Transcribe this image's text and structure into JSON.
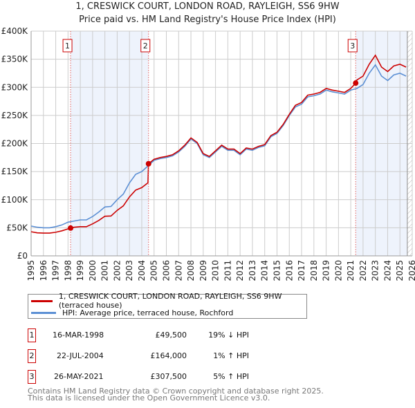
{
  "title": "1, CRESWICK COURT, LONDON ROAD, RAYLEIGH, SS6 9HW",
  "subtitle": "Price paid vs. HM Land Registry's House Price Index (HPI)",
  "chart_data": {
    "type": "line",
    "title": "1, CRESWICK COURT, LONDON ROAD, RAYLEIGH, SS6 9HW",
    "subtitle": "Price paid vs. HM Land Registry's House Price Index (HPI)",
    "xlim": [
      1995,
      2026
    ],
    "ylim": [
      0,
      400000
    ],
    "grid": true,
    "y_ticks": [
      0,
      50000,
      100000,
      150000,
      200000,
      250000,
      300000,
      350000,
      400000
    ],
    "y_tick_labels": [
      "£0",
      "£50K",
      "£100K",
      "£150K",
      "£200K",
      "£250K",
      "£300K",
      "£350K",
      "£400K"
    ],
    "x_ticks": [
      "1995",
      "1996",
      "1997",
      "1998",
      "1999",
      "2000",
      "2001",
      "2002",
      "2003",
      "2004",
      "2005",
      "2006",
      "2007",
      "2008",
      "2009",
      "2010",
      "2011",
      "2012",
      "2013",
      "2014",
      "2015",
      "2016",
      "2017",
      "2018",
      "2019",
      "2020",
      "2021",
      "2022",
      "2023",
      "2024",
      "2025",
      "2026"
    ],
    "legend_position": "below",
    "shaded_ranges": [
      [
        1998.21,
        2004.55
      ],
      [
        2021.4,
        2025.6
      ]
    ],
    "hatched_from": 2025.6,
    "colors": {
      "property": "#cc0000",
      "hpi": "#5b8fd4",
      "shade": "#eef3fc",
      "marker_line": "#e06060"
    },
    "series": [
      {
        "name": "1, CRESWICK COURT, LONDON ROAD, RAYLEIGH, SS6 9HW (terraced house)",
        "color": "#cc0000",
        "x": [
          1995,
          1995.5,
          1996,
          1996.5,
          1997,
          1997.5,
          1998,
          1998.21,
          1998.5,
          1999,
          1999.5,
          2000,
          2000.5,
          2001,
          2001.5,
          2002,
          2002.5,
          2003,
          2003.5,
          2004,
          2004.5,
          2004.55,
          2005,
          2005.5,
          2006,
          2006.5,
          2007,
          2007.5,
          2008,
          2008.5,
          2009,
          2009.5,
          2010,
          2010.5,
          2011,
          2011.5,
          2012,
          2012.5,
          2013,
          2013.5,
          2014,
          2014.5,
          2015,
          2015.5,
          2016,
          2016.5,
          2017,
          2017.5,
          2018,
          2018.5,
          2019,
          2019.5,
          2020,
          2020.5,
          2021,
          2021.4,
          2021.5,
          2022,
          2022.5,
          2023,
          2023.5,
          2024,
          2024.5,
          2025,
          2025.5
        ],
        "y": [
          43000,
          41000,
          40500,
          40500,
          42000,
          44500,
          48000,
          49500,
          51000,
          52000,
          52000,
          57000,
          63000,
          70500,
          71000,
          81000,
          89000,
          105000,
          117000,
          121500,
          130000,
          164000,
          172000,
          175000,
          177000,
          180000,
          187000,
          197000,
          210000,
          202000,
          182000,
          177000,
          187000,
          197000,
          190000,
          190000,
          182000,
          192000,
          190000,
          195000,
          198000,
          214000,
          220000,
          234000,
          252000,
          268000,
          273000,
          286000,
          288000,
          291000,
          298000,
          295000,
          293000,
          291000,
          298000,
          307500,
          313000,
          320000,
          341000,
          357000,
          336000,
          328000,
          338000,
          341000,
          336000
        ]
      },
      {
        "name": "HPI: Average price, terraced house, Rochford",
        "color": "#5b8fd4",
        "x": [
          1995,
          1995.5,
          1996,
          1996.5,
          1997,
          1997.5,
          1998,
          1998.5,
          1999,
          1999.5,
          2000,
          2000.5,
          2001,
          2001.5,
          2002,
          2002.5,
          2003,
          2003.5,
          2004,
          2004.5,
          2005,
          2005.5,
          2006,
          2006.5,
          2007,
          2007.5,
          2008,
          2008.5,
          2009,
          2009.5,
          2010,
          2010.5,
          2011,
          2011.5,
          2012,
          2012.5,
          2013,
          2013.5,
          2014,
          2014.5,
          2015,
          2015.5,
          2016,
          2016.5,
          2017,
          2017.5,
          2018,
          2018.5,
          2019,
          2019.5,
          2020,
          2020.5,
          2021,
          2021.5,
          2022,
          2022.5,
          2023,
          2023.5,
          2024,
          2024.5,
          2025,
          2025.5
        ],
        "y": [
          53000,
          51000,
          50000,
          50000,
          52000,
          55000,
          60000,
          62000,
          64000,
          64000,
          70000,
          78000,
          87000,
          88000,
          100000,
          110000,
          130000,
          145000,
          150000,
          160000,
          170000,
          173000,
          175000,
          178000,
          185000,
          195000,
          208000,
          200000,
          180000,
          175000,
          185000,
          195000,
          188000,
          188000,
          180000,
          190000,
          188000,
          193000,
          196000,
          212000,
          218000,
          232000,
          250000,
          265000,
          270000,
          283000,
          285000,
          288000,
          295000,
          292000,
          290000,
          288000,
          295000,
          298000,
          305000,
          325000,
          340000,
          320000,
          312000,
          322000,
          325000,
          320000
        ]
      }
    ],
    "sales": [
      {
        "label": "1",
        "x": 1998.21,
        "y": 49500
      },
      {
        "label": "2",
        "x": 2004.55,
        "y": 164000
      },
      {
        "label": "3",
        "x": 2021.4,
        "y": 307500
      }
    ]
  },
  "legend": {
    "property": "1, CRESWICK COURT, LONDON ROAD, RAYLEIGH, SS6 9HW (terraced house)",
    "hpi": "HPI: Average price, terraced house, Rochford"
  },
  "transactions": [
    {
      "num": "1",
      "date": "16-MAR-1998",
      "price": "£49,500",
      "hpi": "19% ↓ HPI"
    },
    {
      "num": "2",
      "date": "22-JUL-2004",
      "price": "£164,000",
      "hpi": "1% ↑ HPI"
    },
    {
      "num": "3",
      "date": "26-MAY-2021",
      "price": "£307,500",
      "hpi": "5% ↑ HPI"
    }
  ],
  "footer": {
    "line1": "Contains HM Land Registry data © Crown copyright and database right 2025.",
    "line2": "This data is licensed under the Open Government Licence v3.0."
  }
}
